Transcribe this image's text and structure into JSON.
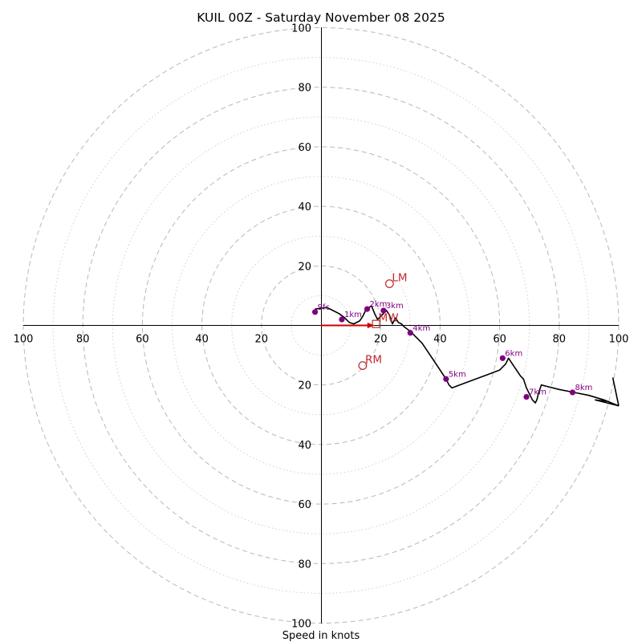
{
  "chart_data": {
    "type": "hodograph",
    "title": "KUIL 00Z - Saturday November 08 2025",
    "xlabel": "Speed in knots",
    "range": [
      -100,
      100
    ],
    "major_rings": [
      20,
      40,
      60,
      80,
      100
    ],
    "minor_rings": [
      10,
      30,
      50,
      70,
      90
    ],
    "x_tick_labels": [
      "100",
      "80",
      "60",
      "40",
      "20",
      "20",
      "40",
      "60",
      "80",
      "100"
    ],
    "y_tick_labels": [
      "100",
      "80",
      "60",
      "40",
      "20",
      "20",
      "40",
      "60",
      "80",
      "100"
    ],
    "hodograph_path": {
      "u": [
        -2,
        2,
        4,
        6,
        8,
        9.5,
        11,
        13,
        14,
        15,
        16,
        17,
        18,
        19,
        20,
        21,
        22,
        23,
        24,
        25,
        26,
        27,
        28,
        30,
        32,
        34,
        36,
        38,
        40,
        42,
        43,
        44,
        48,
        52,
        56,
        60,
        62,
        63,
        64,
        65,
        66,
        67,
        68,
        69,
        70,
        71,
        72,
        72.5,
        73,
        74,
        76,
        80,
        85,
        90,
        95,
        100
      ],
      "v": [
        5.5,
        6,
        5,
        4,
        2.5,
        1,
        0.5,
        1.5,
        3,
        5,
        6,
        6.5,
        4,
        2,
        3,
        4,
        5,
        3.5,
        0.5,
        2.5,
        1,
        0.5,
        -0.5,
        -2,
        -4,
        -6,
        -9,
        -12,
        -15,
        -18,
        -20,
        -21,
        -19.5,
        -18,
        -16.5,
        -15,
        -13,
        -11,
        -12.5,
        -14,
        -15.5,
        -17,
        -18,
        -21,
        -23,
        -25,
        -26,
        -25,
        -23,
        -20,
        -20.5,
        -21.5,
        -22.5,
        -23.5,
        -25,
        -27
      ]
    },
    "wind_barb": {
      "staff": {
        "u": [
          92,
          100
        ],
        "v": [
          -25,
          -27
        ]
      },
      "flags": [
        {
          "u": [
            100,
            98
          ],
          "v": [
            -27,
            -17.5
          ]
        },
        {
          "u": [
            96,
            92
          ],
          "v": [
            -25.5,
            -25
          ]
        }
      ]
    },
    "height_markers": [
      {
        "label": "Sfc",
        "u": -2,
        "v": 4.5
      },
      {
        "label": "1km",
        "u": 7,
        "v": 2
      },
      {
        "label": "2km",
        "u": 15.5,
        "v": 5.5
      },
      {
        "label": "3km",
        "u": 21,
        "v": 5
      },
      {
        "label": "4km",
        "u": 30,
        "v": -2.5
      },
      {
        "label": "5km",
        "u": 42,
        "v": -18
      },
      {
        "label": "6km",
        "u": 61,
        "v": -11
      },
      {
        "label": "7km",
        "u": 69,
        "v": -24
      },
      {
        "label": "8km",
        "u": 84.5,
        "v": -22.5
      }
    ],
    "markers": [
      {
        "label": "LM",
        "u": 23,
        "v": 14,
        "shape": "circle"
      },
      {
        "label": "RM",
        "u": 14,
        "v": -13.5,
        "shape": "circle"
      },
      {
        "label": "MW",
        "u": 18.5,
        "v": 0.5,
        "shape": "square"
      }
    ],
    "storm_motion_arrow": {
      "u": [
        0,
        18
      ],
      "v": [
        0,
        0
      ]
    },
    "colors": {
      "path": "#000000",
      "height_marker": "#800080",
      "markers": "#c0282d",
      "arrow": "#cc0000"
    }
  }
}
